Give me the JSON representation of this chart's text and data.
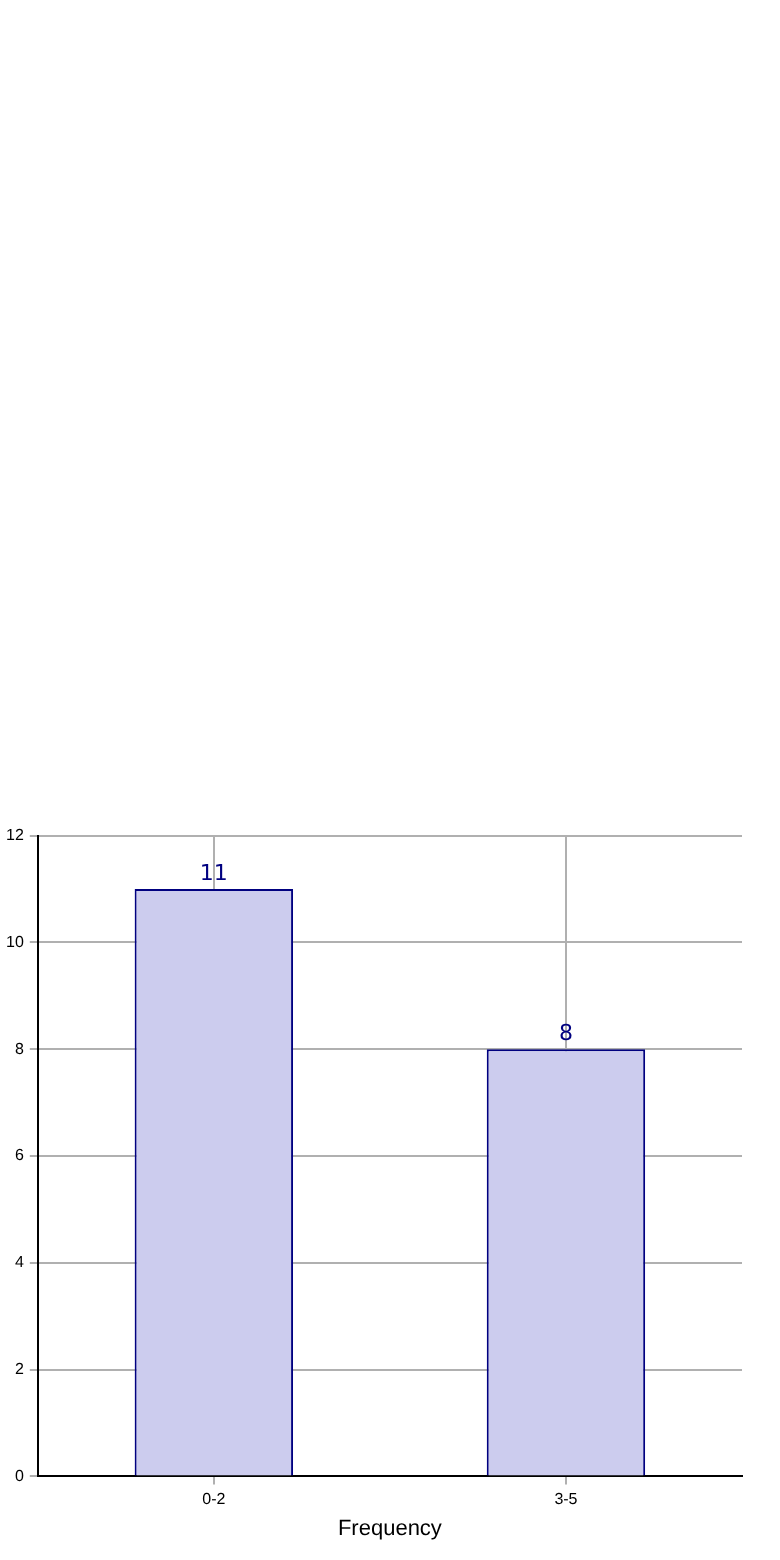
{
  "chart_data": {
    "type": "bar",
    "xlabel": "Frequency",
    "categories": [
      "0-2",
      "3-5"
    ],
    "values": [
      11,
      8
    ],
    "color": "#ccccee",
    "ylim": [
      0,
      12
    ],
    "yticks": [
      0,
      2,
      4,
      6,
      8,
      10,
      12
    ],
    "grid": true,
    "data_labels": true,
    "legend": false
  }
}
